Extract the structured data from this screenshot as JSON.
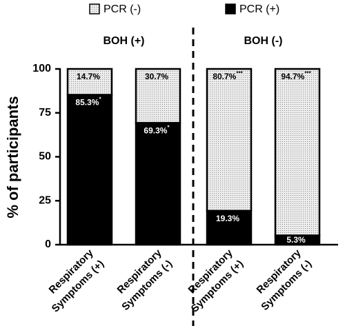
{
  "chart_data": {
    "type": "stacked_bar",
    "y_label": "% of participants",
    "categories": [
      [
        "Respiratory",
        "Symptoms (+)"
      ],
      [
        "Respiratory",
        "Symptoms (-)"
      ],
      [
        "Respiratory",
        "Symptoms (+)"
      ],
      [
        "Respiratory",
        "Symptoms (-)"
      ]
    ],
    "groups": [
      {
        "label": "BOH (+)",
        "categories": [
          0,
          1
        ]
      },
      {
        "label": "BOH (-)",
        "categories": [
          2,
          3
        ]
      }
    ],
    "series": [
      {
        "name": "PCR (+)",
        "color": "#000000",
        "label_color": "#ffffff",
        "values": [
          85.3,
          69.3,
          19.3,
          5.3
        ],
        "value_labels": [
          "85.3%",
          "69.3%",
          "19.3%",
          "5.3%"
        ],
        "significance": [
          "*",
          "*",
          null,
          null
        ]
      },
      {
        "name": "PCR (-)",
        "color": "#e6e6e6",
        "pattern": "dots",
        "label_color": "#000000",
        "values": [
          14.7,
          30.7,
          80.7,
          94.7
        ],
        "value_labels": [
          "14.7%",
          "30.7%",
          "80.7%",
          "94.7%"
        ],
        "significance": [
          null,
          null,
          "***",
          "***"
        ]
      }
    ],
    "ylim": [
      0,
      100
    ],
    "yticks": [
      0,
      25,
      50,
      75,
      100
    ],
    "grid": false
  }
}
